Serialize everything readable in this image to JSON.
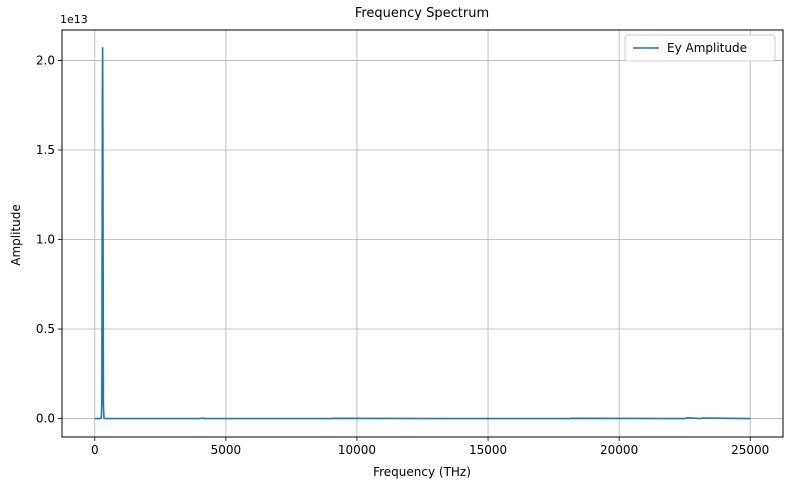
{
  "chart_data": {
    "type": "line",
    "title": "Frequency Spectrum",
    "xlabel": "Frequency (THz)",
    "ylabel": "Amplitude",
    "y_offset_label": "1e13",
    "y_scale": 10000000000000.0,
    "xlim": [
      -1250,
      26250
    ],
    "ylim": [
      -1030000000000.0,
      21700000000000.0
    ],
    "x_ticks": [
      0,
      5000,
      10000,
      15000,
      20000,
      25000
    ],
    "x_tick_labels": [
      "0",
      "5000",
      "10000",
      "15000",
      "20000",
      "25000"
    ],
    "y_ticks": [
      0,
      5000000000000.0,
      10000000000000.0,
      15000000000000.0,
      20000000000000.0
    ],
    "y_tick_labels": [
      "0.0",
      "0.5",
      "1.0",
      "1.5",
      "2.0"
    ],
    "grid": true,
    "legend_position": "top-right",
    "series": [
      {
        "name": "Ey Amplitude",
        "color": "#1f77b4",
        "x": [
          0,
          200,
          250,
          270,
          290,
          300,
          310,
          330,
          350,
          400,
          4000,
          4100,
          4200,
          9000,
          9100,
          14000,
          18100,
          18200,
          22500,
          22600,
          23100,
          23200,
          25000
        ],
        "y": [
          0,
          0,
          30000000000.0,
          1000000000000.0,
          18000000000000.0,
          20700000000000.0,
          16000000000000.0,
          800000000000.0,
          30000000000.0,
          0,
          0,
          20000000000.0,
          0,
          0,
          15000000000.0,
          0,
          0,
          15000000000.0,
          0,
          40000000000.0,
          0,
          30000000000.0,
          0
        ]
      }
    ]
  }
}
